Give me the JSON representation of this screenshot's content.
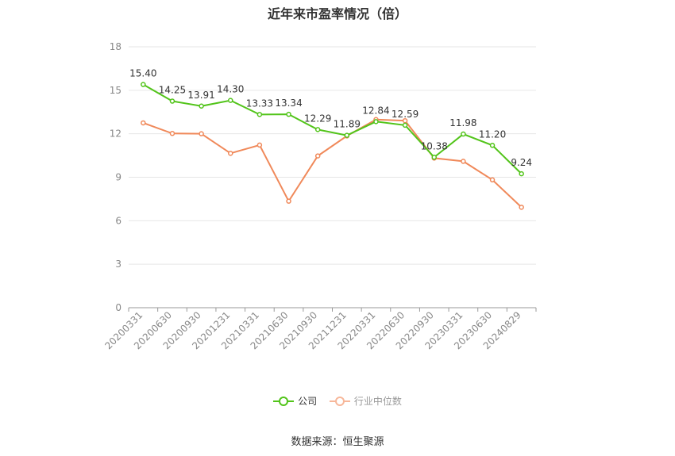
{
  "chart_data": {
    "type": "line",
    "title": "近年来市盈率情况（倍）",
    "source": "数据来源：恒生聚源",
    "categories": [
      "20200331",
      "20200630",
      "20200930",
      "20201231",
      "20210331",
      "20210630",
      "20210930",
      "20211231",
      "20220331",
      "20220630",
      "20220930",
      "20230331",
      "20230630",
      "20240829"
    ],
    "ylim": [
      0,
      18
    ],
    "yticks": [
      0,
      3,
      6,
      9,
      12,
      15,
      18
    ],
    "grid": true,
    "legend_position": "bottom",
    "series": [
      {
        "name": "公司",
        "color": "#52c41a",
        "values": [
          15.4,
          14.25,
          13.91,
          14.3,
          13.33,
          13.34,
          12.29,
          11.89,
          12.84,
          12.59,
          10.38,
          11.98,
          11.2,
          9.24
        ],
        "labels": [
          "15.40",
          "14.25",
          "13.91",
          "14.30",
          "13.33",
          "13.34",
          "12.29",
          "11.89",
          "12.84",
          "12.59",
          "10.38",
          "11.98",
          "11.20",
          "9.24"
        ]
      },
      {
        "name": "行业中位数",
        "color": "#f0895a",
        "values": [
          12.75,
          12.02,
          12.0,
          10.65,
          11.22,
          7.35,
          10.47,
          11.85,
          12.98,
          12.9,
          10.32,
          10.1,
          8.82,
          6.93
        ]
      }
    ]
  }
}
